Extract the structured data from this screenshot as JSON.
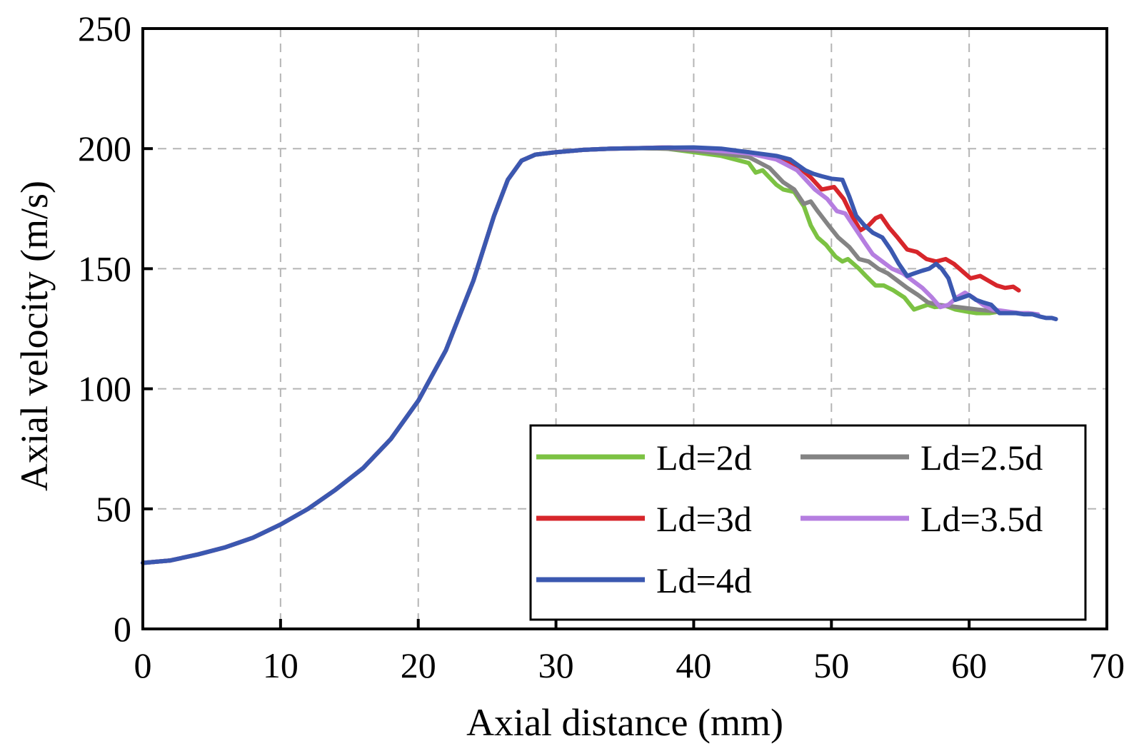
{
  "chart_data": {
    "type": "line",
    "title": "",
    "xlabel": "Axial distance (mm)",
    "ylabel": "Axial velocity (m/s)",
    "xlim": [
      0,
      70
    ],
    "ylim": [
      0,
      250
    ],
    "xticks": [
      0,
      10,
      20,
      30,
      40,
      50,
      60,
      70
    ],
    "yticks": [
      0,
      50,
      100,
      150,
      200,
      250
    ],
    "xtick_labels": [
      "0",
      "10",
      "20",
      "30",
      "40",
      "50",
      "60",
      "70"
    ],
    "ytick_labels": [
      "0",
      "50",
      "100",
      "150",
      "200",
      "250"
    ],
    "grid": true,
    "legend_position": "bottom-right",
    "shared_rise": [
      [
        0,
        27.5
      ],
      [
        2,
        28.5
      ],
      [
        4,
        31
      ],
      [
        6,
        34
      ],
      [
        8,
        38
      ],
      [
        10,
        43.5
      ],
      [
        12,
        50
      ],
      [
        14,
        58
      ],
      [
        16,
        67
      ],
      [
        18,
        79
      ],
      [
        20,
        95
      ],
      [
        22,
        116
      ],
      [
        24,
        145
      ],
      [
        25.5,
        172
      ],
      [
        26.5,
        187
      ],
      [
        27.5,
        195
      ],
      [
        28.5,
        197.5
      ],
      [
        30,
        198.5
      ],
      [
        32,
        199.5
      ],
      [
        34,
        200
      ],
      [
        36,
        200.2
      ]
    ],
    "series": [
      {
        "name": "Ld=2d",
        "color": "#7cc243",
        "points": [
          [
            38,
            200
          ],
          [
            40,
            198.5
          ],
          [
            42,
            197
          ],
          [
            44,
            194
          ],
          [
            44.5,
            190
          ],
          [
            45,
            191
          ],
          [
            46,
            185
          ],
          [
            46.5,
            183
          ],
          [
            47.3,
            182
          ],
          [
            48,
            176
          ],
          [
            48.5,
            168
          ],
          [
            49,
            163
          ],
          [
            49.6,
            160
          ],
          [
            50.3,
            155
          ],
          [
            50.8,
            153
          ],
          [
            51.2,
            154
          ],
          [
            52,
            150
          ],
          [
            52.5,
            147
          ],
          [
            53.2,
            143
          ],
          [
            53.8,
            143
          ],
          [
            54.5,
            141
          ],
          [
            55.3,
            138
          ],
          [
            56,
            133
          ],
          [
            56.5,
            134
          ],
          [
            57,
            135
          ],
          [
            57.5,
            134
          ],
          [
            58.3,
            134.5
          ],
          [
            59,
            133
          ],
          [
            59.5,
            132.5
          ],
          [
            60,
            132
          ],
          [
            60.5,
            131.5
          ],
          [
            61.5,
            131.5
          ],
          [
            62,
            132
          ]
        ]
      },
      {
        "name": "Ld=2.5d",
        "color": "#848484",
        "points": [
          [
            38,
            200
          ],
          [
            40,
            199.2
          ],
          [
            42,
            198
          ],
          [
            44,
            196.5
          ],
          [
            45.5,
            192
          ],
          [
            46.5,
            186
          ],
          [
            47.3,
            183
          ],
          [
            48,
            177
          ],
          [
            48.5,
            178
          ],
          [
            49,
            174
          ],
          [
            49.8,
            168
          ],
          [
            50.5,
            163
          ],
          [
            51.3,
            159
          ],
          [
            52,
            154
          ],
          [
            52.7,
            153
          ],
          [
            53.4,
            150
          ],
          [
            54.1,
            148
          ],
          [
            54.8,
            145
          ],
          [
            55.5,
            142
          ],
          [
            56.3,
            139
          ],
          [
            57,
            136
          ],
          [
            57.7,
            135
          ],
          [
            58.4,
            134.5
          ],
          [
            59.2,
            134
          ],
          [
            59.9,
            133.5
          ],
          [
            60.6,
            133
          ],
          [
            61.5,
            132.5
          ],
          [
            62.2,
            132
          ]
        ]
      },
      {
        "name": "Ld=3d",
        "color": "#d7262b",
        "points": [
          [
            38,
            200.5
          ],
          [
            40,
            200
          ],
          [
            42,
            199.5
          ],
          [
            44,
            198.5
          ],
          [
            46,
            196.5
          ],
          [
            47.5,
            193
          ],
          [
            48.5,
            188
          ],
          [
            49.3,
            183
          ],
          [
            50.2,
            184
          ],
          [
            50.9,
            179
          ],
          [
            51.5,
            172
          ],
          [
            52.1,
            166
          ],
          [
            52.7,
            168
          ],
          [
            53.2,
            171
          ],
          [
            53.6,
            172
          ],
          [
            54.2,
            167
          ],
          [
            54.8,
            163
          ],
          [
            55.5,
            158
          ],
          [
            56.2,
            157
          ],
          [
            56.9,
            154
          ],
          [
            57.6,
            153
          ],
          [
            58.3,
            154
          ],
          [
            58.9,
            152
          ],
          [
            59.5,
            149
          ],
          [
            60.1,
            146
          ],
          [
            60.8,
            147
          ],
          [
            61.4,
            145
          ],
          [
            62,
            143
          ],
          [
            62.6,
            142
          ],
          [
            63.2,
            142.5
          ],
          [
            63.6,
            141
          ]
        ]
      },
      {
        "name": "Ld=3.5d",
        "color": "#b57ee0",
        "points": [
          [
            38,
            200.5
          ],
          [
            40,
            200
          ],
          [
            42,
            199
          ],
          [
            44,
            198
          ],
          [
            46,
            195.5
          ],
          [
            47.5,
            191
          ],
          [
            48.8,
            183
          ],
          [
            49.7,
            179
          ],
          [
            50.4,
            174
          ],
          [
            51,
            173
          ],
          [
            51.7,
            167
          ],
          [
            52.4,
            161
          ],
          [
            53,
            156
          ],
          [
            53.7,
            153
          ],
          [
            54.4,
            150
          ],
          [
            55.2,
            148
          ],
          [
            55.9,
            145
          ],
          [
            56.6,
            142
          ],
          [
            57.3,
            138
          ],
          [
            57.9,
            134
          ],
          [
            58.5,
            135
          ],
          [
            59.1,
            138
          ],
          [
            59.7,
            140
          ],
          [
            60.3,
            138
          ],
          [
            61,
            135
          ],
          [
            61.7,
            133
          ],
          [
            62.4,
            132.5
          ],
          [
            63,
            132
          ],
          [
            63.7,
            131.5
          ],
          [
            64.3,
            131.5
          ],
          [
            65,
            131
          ]
        ]
      },
      {
        "name": "Ld=4d",
        "color": "#3b58b0",
        "points": [
          [
            36,
            200.2
          ],
          [
            38,
            200.4
          ],
          [
            40,
            200.5
          ],
          [
            42,
            200
          ],
          [
            44,
            198.5
          ],
          [
            46,
            197
          ],
          [
            47,
            195.5
          ],
          [
            47.6,
            193
          ],
          [
            48.1,
            191
          ],
          [
            48.7,
            189.5
          ],
          [
            49.3,
            188.5
          ],
          [
            50,
            187.5
          ],
          [
            50.8,
            187
          ],
          [
            51.3,
            180
          ],
          [
            51.8,
            172
          ],
          [
            52.4,
            168
          ],
          [
            53,
            165
          ],
          [
            53.7,
            163
          ],
          [
            54.3,
            158
          ],
          [
            54.9,
            152
          ],
          [
            55.5,
            147
          ],
          [
            56,
            148
          ],
          [
            56.5,
            149
          ],
          [
            57.1,
            150
          ],
          [
            57.6,
            152
          ],
          [
            58,
            150
          ],
          [
            58.5,
            146
          ],
          [
            59,
            137
          ],
          [
            59.5,
            138
          ],
          [
            60,
            139
          ],
          [
            60.5,
            137
          ],
          [
            61,
            136
          ],
          [
            61.6,
            135
          ],
          [
            62.2,
            131.5
          ],
          [
            62.8,
            131.5
          ],
          [
            63.4,
            131.5
          ],
          [
            64,
            131
          ],
          [
            64.6,
            131
          ],
          [
            65.2,
            130
          ],
          [
            65.6,
            129.5
          ],
          [
            66,
            129.5
          ],
          [
            66.3,
            129
          ]
        ]
      }
    ]
  }
}
